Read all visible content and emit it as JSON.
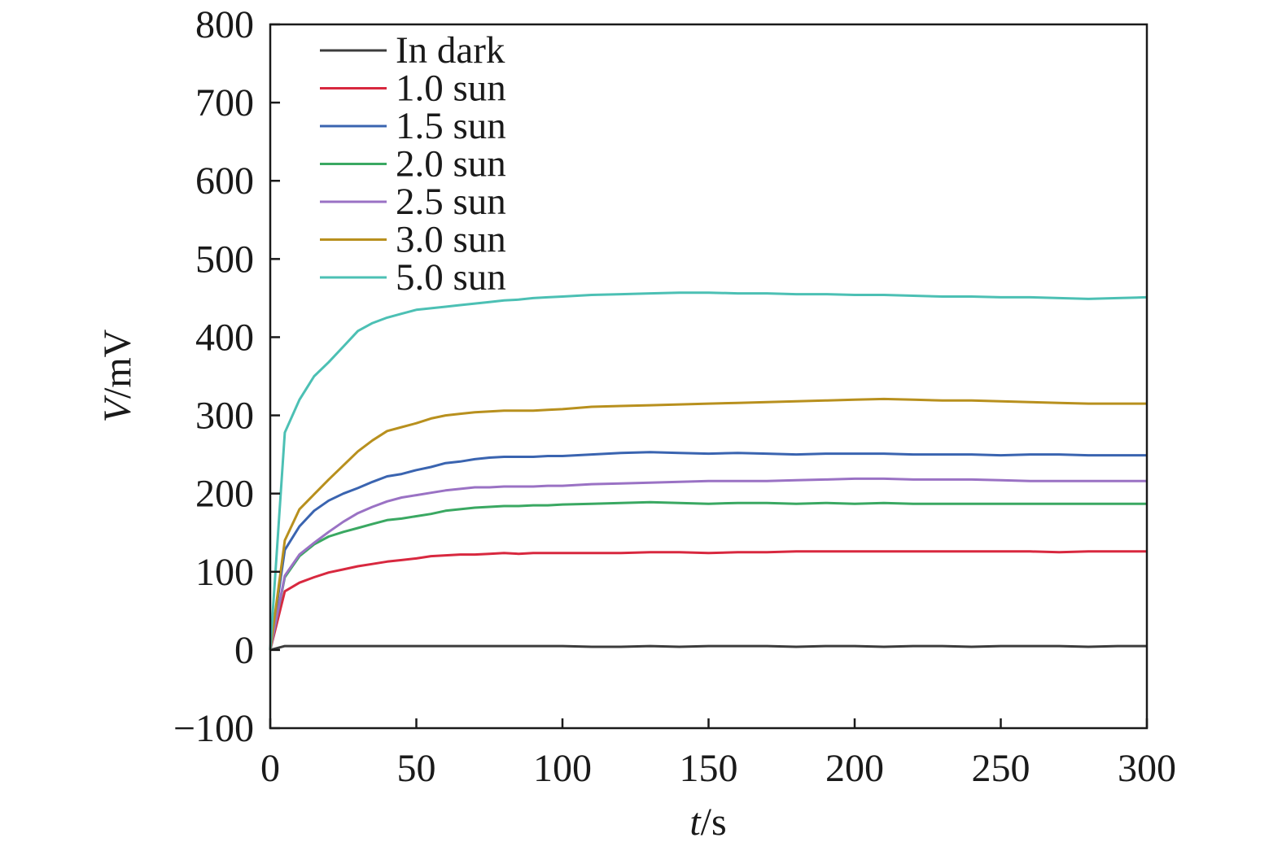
{
  "chart_data": {
    "type": "line",
    "title": "",
    "xlabel_var": "t",
    "xlabel_unit": "/s",
    "ylabel_var": "V",
    "ylabel_unit": "/mV",
    "xlim": [
      0,
      300
    ],
    "ylim": [
      -100,
      800
    ],
    "xticks": [
      0,
      50,
      100,
      150,
      200,
      250,
      300
    ],
    "yticks": [
      -100,
      0,
      100,
      200,
      300,
      400,
      500,
      600,
      700,
      800
    ],
    "xtick_labels": [
      "0",
      "50",
      "100",
      "150",
      "200",
      "250",
      "300"
    ],
    "ytick_labels": [
      "−100",
      "0",
      "100",
      "200",
      "300",
      "400",
      "500",
      "600",
      "700",
      "800"
    ],
    "grid": false,
    "legend_position": "top-left",
    "x": [
      0,
      5,
      10,
      15,
      20,
      25,
      30,
      35,
      40,
      45,
      50,
      55,
      60,
      65,
      70,
      75,
      80,
      85,
      90,
      95,
      100,
      110,
      120,
      130,
      140,
      150,
      160,
      170,
      180,
      190,
      200,
      210,
      220,
      230,
      240,
      250,
      260,
      270,
      280,
      290,
      300
    ],
    "series": [
      {
        "name": "In dark",
        "color": "#3c3c3c",
        "values": [
          0,
          5,
          5,
          5,
          5,
          5,
          5,
          5,
          5,
          5,
          5,
          5,
          5,
          5,
          5,
          5,
          5,
          5,
          5,
          5,
          5,
          4,
          4,
          5,
          4,
          5,
          5,
          5,
          4,
          5,
          5,
          4,
          5,
          5,
          4,
          5,
          5,
          5,
          4,
          5,
          5
        ]
      },
      {
        "name": "1.0 sun",
        "color": "#d8283f",
        "values": [
          0,
          75,
          86,
          93,
          99,
          103,
          107,
          110,
          113,
          115,
          117,
          120,
          121,
          122,
          122,
          123,
          124,
          123,
          124,
          124,
          124,
          124,
          124,
          125,
          125,
          124,
          125,
          125,
          126,
          126,
          126,
          126,
          126,
          126,
          126,
          126,
          126,
          125,
          126,
          126,
          126
        ]
      },
      {
        "name": "1.5 sun",
        "color": "#3a64b0",
        "values": [
          0,
          128,
          158,
          178,
          191,
          200,
          207,
          215,
          222,
          225,
          230,
          234,
          239,
          241,
          244,
          246,
          247,
          247,
          247,
          248,
          248,
          250,
          252,
          253,
          252,
          251,
          252,
          251,
          250,
          251,
          251,
          251,
          250,
          250,
          250,
          249,
          250,
          250,
          249,
          249,
          249
        ]
      },
      {
        "name": "2.0 sun",
        "color": "#3aa862",
        "values": [
          0,
          93,
          120,
          135,
          145,
          151,
          156,
          161,
          166,
          168,
          171,
          174,
          178,
          180,
          182,
          183,
          184,
          184,
          185,
          185,
          186,
          187,
          188,
          189,
          188,
          187,
          188,
          188,
          187,
          188,
          187,
          188,
          187,
          187,
          187,
          187,
          187,
          187,
          187,
          187,
          187
        ]
      },
      {
        "name": "2.5 sun",
        "color": "#9a72c4",
        "values": [
          0,
          95,
          122,
          137,
          151,
          164,
          175,
          183,
          190,
          195,
          198,
          201,
          204,
          206,
          208,
          208,
          209,
          209,
          209,
          210,
          210,
          212,
          213,
          214,
          215,
          216,
          216,
          216,
          217,
          218,
          219,
          219,
          218,
          218,
          218,
          217,
          216,
          216,
          216,
          216,
          216
        ]
      },
      {
        "name": "3.0 sun",
        "color": "#b8901e",
        "values": [
          0,
          140,
          180,
          199,
          218,
          236,
          254,
          268,
          280,
          285,
          290,
          296,
          300,
          302,
          304,
          305,
          306,
          306,
          306,
          307,
          308,
          311,
          312,
          313,
          314,
          315,
          316,
          317,
          318,
          319,
          320,
          321,
          320,
          319,
          319,
          318,
          317,
          316,
          315,
          315,
          315
        ]
      },
      {
        "name": "5.0 sun",
        "color": "#4cc0b4",
        "values": [
          0,
          278,
          320,
          350,
          368,
          388,
          408,
          418,
          425,
          430,
          435,
          437,
          439,
          441,
          443,
          445,
          447,
          448,
          450,
          451,
          452,
          454,
          455,
          456,
          457,
          457,
          456,
          456,
          455,
          455,
          454,
          454,
          453,
          452,
          452,
          451,
          451,
          450,
          449,
          450,
          451
        ]
      }
    ]
  }
}
